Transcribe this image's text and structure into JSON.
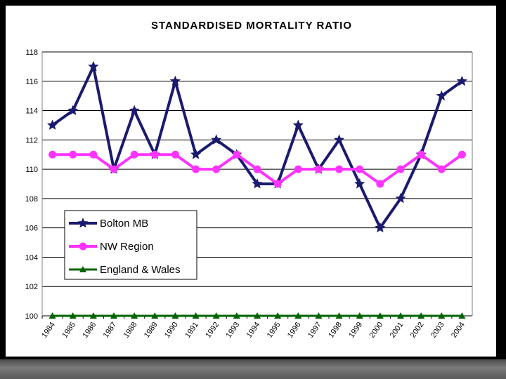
{
  "chart_data": {
    "type": "line",
    "title": "STANDARDISED MORTALITY RATIO",
    "xlabel": "",
    "ylabel": "",
    "x": [
      "1984",
      "1985",
      "1986",
      "1987",
      "1988",
      "1989",
      "1990",
      "1991",
      "1992",
      "1993",
      "1994",
      "1995",
      "1996",
      "1997",
      "1998",
      "1999",
      "2000",
      "2001",
      "2002",
      "2003",
      "2004"
    ],
    "ylim": [
      100,
      118
    ],
    "yticks": [
      100,
      102,
      104,
      106,
      108,
      110,
      112,
      114,
      116,
      118
    ],
    "grid": true,
    "legend_position": "bottom-left",
    "series": [
      {
        "name": "Bolton MB",
        "color": "#1a1a6e",
        "marker": "star",
        "values": [
          113,
          114,
          117,
          110,
          114,
          111,
          116,
          111,
          112,
          111,
          109,
          109,
          113,
          110,
          112,
          109,
          106,
          108,
          111,
          115,
          116
        ]
      },
      {
        "name": "NW Region",
        "color": "#ff33ff",
        "marker": "circle",
        "values": [
          111,
          111,
          111,
          110,
          111,
          111,
          111,
          110,
          110,
          111,
          110,
          109,
          110,
          110,
          110,
          110,
          109,
          110,
          111,
          110,
          111
        ]
      },
      {
        "name": "England & Wales",
        "color": "#006400",
        "marker": "triangle",
        "values": [
          100,
          100,
          100,
          100,
          100,
          100,
          100,
          100,
          100,
          100,
          100,
          100,
          100,
          100,
          100,
          100,
          100,
          100,
          100,
          100,
          100
        ]
      }
    ]
  }
}
